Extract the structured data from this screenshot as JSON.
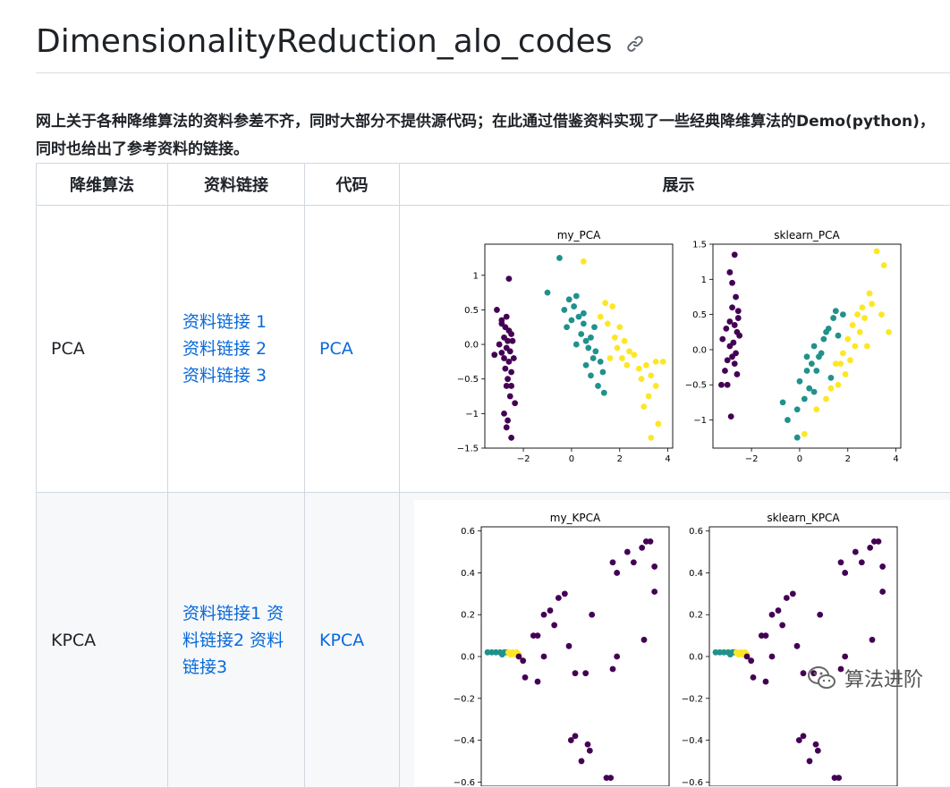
{
  "title": "DimensionalityReduction_alo_codes",
  "intro": "网上关于各种降维算法的资料参差不齐，同时大部分不提供源代码；在此通过借鉴资料实现了一些经典降维算法的Demo(python)，同时也给出了参考资料的链接。",
  "table": {
    "headers": [
      "降维算法",
      "资料链接",
      "代码",
      "展示"
    ],
    "rows": [
      {
        "algo": "PCA",
        "links": [
          "资料链接 1",
          "资料链接 2",
          "资料链接 3"
        ],
        "code": "PCA"
      },
      {
        "algo": "KPCA",
        "links": [
          "资料链接1",
          "资料链接2",
          "资料链接3"
        ],
        "code": "KPCA"
      }
    ]
  },
  "watermark": "算法进阶",
  "colors": {
    "purple": "#440154",
    "teal": "#21918c",
    "yellow": "#fde725",
    "link": "#0969da"
  },
  "chart_data": [
    {
      "type": "scatter",
      "title": "my_PCA",
      "xlim": [
        -3.6,
        4.2
      ],
      "ylim": [
        -1.5,
        1.45
      ],
      "xticks": [
        -2,
        0,
        2,
        4
      ],
      "yticks": [
        -1.5,
        -1.0,
        -0.5,
        0.0,
        0.5,
        1.0
      ],
      "series": [
        {
          "color": "#440154",
          "points": [
            [
              -2.6,
              0.95
            ],
            [
              -3.1,
              0.5
            ],
            [
              -2.9,
              0.3
            ],
            [
              -2.75,
              0.25
            ],
            [
              -2.6,
              0.2
            ],
            [
              -2.5,
              0.15
            ],
            [
              -2.8,
              0.1
            ],
            [
              -2.65,
              0.05
            ],
            [
              -3.0,
              0.0
            ],
            [
              -2.7,
              -0.05
            ],
            [
              -2.55,
              -0.1
            ],
            [
              -2.9,
              -0.12
            ],
            [
              -2.8,
              -0.2
            ],
            [
              -2.6,
              -0.25
            ],
            [
              -2.75,
              -0.35
            ],
            [
              -2.5,
              -0.4
            ],
            [
              -2.65,
              -0.5
            ],
            [
              -2.7,
              -0.6
            ],
            [
              -2.55,
              -0.75
            ],
            [
              -2.35,
              -0.85
            ],
            [
              -2.8,
              -1.0
            ],
            [
              -2.65,
              -1.1
            ],
            [
              -2.7,
              -1.2
            ],
            [
              -2.5,
              -1.35
            ],
            [
              -3.2,
              -0.15
            ],
            [
              -2.45,
              0.05
            ],
            [
              -2.9,
              0.35
            ],
            [
              -2.7,
              0.4
            ],
            [
              -2.4,
              -0.2
            ],
            [
              -2.5,
              -0.6
            ]
          ]
        },
        {
          "color": "#21918c",
          "points": [
            [
              -0.5,
              1.25
            ],
            [
              -1.0,
              0.75
            ],
            [
              -0.3,
              0.5
            ],
            [
              -0.1,
              0.65
            ],
            [
              0.1,
              0.55
            ],
            [
              0.2,
              0.7
            ],
            [
              0.3,
              0.4
            ],
            [
              0.5,
              0.3
            ],
            [
              0.0,
              0.35
            ],
            [
              -0.2,
              0.25
            ],
            [
              0.4,
              0.15
            ],
            [
              0.6,
              0.05
            ],
            [
              0.8,
              0.1
            ],
            [
              0.7,
              -0.05
            ],
            [
              1.0,
              -0.1
            ],
            [
              0.9,
              -0.2
            ],
            [
              0.6,
              -0.3
            ],
            [
              1.2,
              -0.25
            ],
            [
              1.3,
              -0.4
            ],
            [
              0.8,
              -0.45
            ],
            [
              1.1,
              -0.6
            ],
            [
              1.35,
              -0.7
            ],
            [
              0.2,
              0.0
            ],
            [
              0.5,
              0.45
            ],
            [
              0.95,
              0.25
            ]
          ]
        },
        {
          "color": "#fde725",
          "points": [
            [
              0.5,
              1.2
            ],
            [
              1.4,
              0.6
            ],
            [
              1.7,
              0.55
            ],
            [
              1.2,
              0.4
            ],
            [
              1.5,
              0.3
            ],
            [
              2.0,
              0.25
            ],
            [
              1.8,
              0.1
            ],
            [
              2.2,
              0.05
            ],
            [
              1.9,
              -0.05
            ],
            [
              2.4,
              -0.1
            ],
            [
              2.1,
              -0.2
            ],
            [
              2.6,
              -0.15
            ],
            [
              2.3,
              -0.3
            ],
            [
              2.8,
              -0.35
            ],
            [
              3.1,
              -0.3
            ],
            [
              2.9,
              -0.5
            ],
            [
              3.3,
              -0.45
            ],
            [
              3.5,
              -0.25
            ],
            [
              3.8,
              -0.25
            ],
            [
              3.2,
              -0.75
            ],
            [
              3.5,
              -0.6
            ],
            [
              3.0,
              -0.9
            ],
            [
              3.6,
              -1.15
            ],
            [
              3.3,
              -1.35
            ],
            [
              1.6,
              -0.2
            ]
          ]
        }
      ]
    },
    {
      "type": "scatter",
      "title": "sklearn_PCA",
      "xlim": [
        -3.6,
        4.2
      ],
      "ylim": [
        -1.4,
        1.5
      ],
      "xticks": [
        -2,
        0,
        2,
        4
      ],
      "yticks": [
        -1.0,
        -0.5,
        0.0,
        0.5,
        1.0,
        1.5
      ],
      "series": [
        {
          "color": "#440154",
          "points": [
            [
              -2.7,
              1.35
            ],
            [
              -2.9,
              1.1
            ],
            [
              -2.8,
              0.95
            ],
            [
              -2.65,
              0.75
            ],
            [
              -2.8,
              0.6
            ],
            [
              -2.55,
              0.55
            ],
            [
              -2.9,
              0.4
            ],
            [
              -2.7,
              0.35
            ],
            [
              -2.6,
              0.25
            ],
            [
              -3.2,
              0.15
            ],
            [
              -2.75,
              0.1
            ],
            [
              -2.9,
              0.05
            ],
            [
              -2.65,
              -0.05
            ],
            [
              -2.8,
              -0.1
            ],
            [
              -3.0,
              -0.15
            ],
            [
              -2.7,
              -0.2
            ],
            [
              -3.1,
              -0.3
            ],
            [
              -2.6,
              -0.35
            ],
            [
              -3.25,
              -0.5
            ],
            [
              -3.0,
              -0.5
            ],
            [
              -2.85,
              -0.95
            ],
            [
              -2.55,
              0.45
            ],
            [
              -2.5,
              0.2
            ],
            [
              -3.05,
              0.3
            ]
          ]
        },
        {
          "color": "#21918c",
          "points": [
            [
              -0.7,
              -0.75
            ],
            [
              -0.1,
              -0.85
            ],
            [
              0.0,
              -0.45
            ],
            [
              0.3,
              -0.3
            ],
            [
              0.5,
              -0.2
            ],
            [
              0.8,
              -0.1
            ],
            [
              0.6,
              0.05
            ],
            [
              1.0,
              0.15
            ],
            [
              1.2,
              0.3
            ],
            [
              1.4,
              0.45
            ],
            [
              1.5,
              0.55
            ],
            [
              1.1,
              0.25
            ],
            [
              0.9,
              -0.05
            ],
            [
              0.4,
              -0.55
            ],
            [
              0.2,
              -0.7
            ],
            [
              0.6,
              -0.6
            ],
            [
              1.3,
              -0.4
            ],
            [
              -0.5,
              -1.0
            ],
            [
              -0.1,
              -1.25
            ],
            [
              0.7,
              -0.3
            ],
            [
              1.6,
              0.2
            ],
            [
              0.3,
              -0.1
            ],
            [
              1.8,
              0.5
            ]
          ]
        },
        {
          "color": "#fde725",
          "points": [
            [
              3.2,
              1.4
            ],
            [
              3.5,
              1.2
            ],
            [
              2.9,
              0.8
            ],
            [
              2.6,
              0.6
            ],
            [
              3.0,
              0.65
            ],
            [
              2.4,
              0.5
            ],
            [
              2.7,
              0.45
            ],
            [
              2.2,
              0.35
            ],
            [
              2.5,
              0.25
            ],
            [
              2.0,
              0.15
            ],
            [
              2.3,
              0.05
            ],
            [
              1.8,
              -0.05
            ],
            [
              2.1,
              -0.15
            ],
            [
              1.5,
              -0.2
            ],
            [
              1.9,
              -0.35
            ],
            [
              1.6,
              -0.5
            ],
            [
              1.3,
              -0.55
            ],
            [
              1.1,
              -0.7
            ],
            [
              0.7,
              -0.85
            ],
            [
              0.2,
              -1.2
            ],
            [
              3.7,
              0.25
            ],
            [
              3.4,
              0.5
            ],
            [
              2.8,
              0.05
            ],
            [
              1.7,
              -0.2
            ]
          ]
        }
      ]
    },
    {
      "type": "scatter",
      "title": "my_KPCA",
      "xlim": [
        -0.15,
        0.75
      ],
      "ylim": [
        -0.62,
        0.62
      ],
      "yticks": [
        -0.6,
        -0.4,
        -0.2,
        0.0,
        0.2,
        0.4,
        0.6
      ],
      "series": [
        {
          "color": "#21918c",
          "points": [
            [
              -0.12,
              0.02
            ],
            [
              -0.1,
              0.02
            ],
            [
              -0.08,
              0.02
            ],
            [
              -0.06,
              0.02
            ],
            [
              -0.05,
              0.01
            ],
            [
              -0.04,
              0.02
            ],
            [
              -0.03,
              0.02
            ]
          ]
        },
        {
          "color": "#fde725",
          "points": [
            [
              -0.02,
              0.02
            ],
            [
              -0.01,
              0.01
            ],
            [
              0.0,
              0.02
            ],
            [
              0.01,
              0.01
            ],
            [
              0.02,
              0.02
            ],
            [
              0.03,
              0.01
            ]
          ]
        },
        {
          "color": "#440154",
          "points": [
            [
              0.03,
              0.0
            ],
            [
              0.05,
              -0.02
            ],
            [
              0.06,
              -0.1
            ],
            [
              0.12,
              -0.12
            ],
            [
              0.1,
              0.1
            ],
            [
              0.12,
              0.1
            ],
            [
              0.15,
              0.2
            ],
            [
              0.18,
              0.22
            ],
            [
              0.2,
              0.15
            ],
            [
              0.22,
              0.28
            ],
            [
              0.25,
              0.3
            ],
            [
              0.27,
              0.05
            ],
            [
              0.3,
              -0.08
            ],
            [
              0.35,
              -0.08
            ],
            [
              0.28,
              -0.4
            ],
            [
              0.3,
              -0.38
            ],
            [
              0.36,
              -0.42
            ],
            [
              0.37,
              -0.45
            ],
            [
              0.33,
              -0.5
            ],
            [
              0.38,
              0.2
            ],
            [
              0.45,
              -0.58
            ],
            [
              0.47,
              -0.58
            ],
            [
              0.48,
              0.45
            ],
            [
              0.5,
              0.4
            ],
            [
              0.55,
              0.5
            ],
            [
              0.58,
              0.45
            ],
            [
              0.62,
              0.52
            ],
            [
              0.64,
              0.55
            ],
            [
              0.66,
              0.55
            ],
            [
              0.68,
              0.43
            ],
            [
              0.68,
              0.31
            ],
            [
              0.63,
              0.08
            ],
            [
              0.5,
              0.0
            ],
            [
              0.48,
              -0.06
            ],
            [
              0.15,
              0.0
            ]
          ]
        }
      ]
    },
    {
      "type": "scatter",
      "title": "sklearn_KPCA",
      "xlim": [
        -0.15,
        0.75
      ],
      "ylim": [
        -0.62,
        0.62
      ],
      "yticks": [
        -0.6,
        -0.4,
        -0.2,
        0.0,
        0.2,
        0.4,
        0.6
      ],
      "series": [
        {
          "color": "#21918c",
          "points": [
            [
              -0.12,
              0.02
            ],
            [
              -0.1,
              0.02
            ],
            [
              -0.08,
              0.02
            ],
            [
              -0.06,
              0.02
            ],
            [
              -0.05,
              0.01
            ],
            [
              -0.04,
              0.02
            ],
            [
              -0.03,
              0.02
            ]
          ]
        },
        {
          "color": "#fde725",
          "points": [
            [
              -0.02,
              0.02
            ],
            [
              -0.01,
              0.01
            ],
            [
              0.0,
              0.02
            ],
            [
              0.01,
              0.01
            ],
            [
              0.02,
              0.02
            ],
            [
              0.03,
              0.01
            ]
          ]
        },
        {
          "color": "#440154",
          "points": [
            [
              0.03,
              0.0
            ],
            [
              0.05,
              -0.02
            ],
            [
              0.06,
              -0.1
            ],
            [
              0.12,
              -0.12
            ],
            [
              0.1,
              0.1
            ],
            [
              0.12,
              0.1
            ],
            [
              0.15,
              0.2
            ],
            [
              0.18,
              0.22
            ],
            [
              0.2,
              0.15
            ],
            [
              0.22,
              0.28
            ],
            [
              0.25,
              0.3
            ],
            [
              0.27,
              0.05
            ],
            [
              0.3,
              -0.08
            ],
            [
              0.35,
              -0.08
            ],
            [
              0.28,
              -0.4
            ],
            [
              0.3,
              -0.38
            ],
            [
              0.36,
              -0.42
            ],
            [
              0.37,
              -0.45
            ],
            [
              0.33,
              -0.5
            ],
            [
              0.38,
              0.2
            ],
            [
              0.45,
              -0.58
            ],
            [
              0.47,
              -0.58
            ],
            [
              0.48,
              0.45
            ],
            [
              0.5,
              0.4
            ],
            [
              0.55,
              0.5
            ],
            [
              0.58,
              0.45
            ],
            [
              0.62,
              0.52
            ],
            [
              0.64,
              0.55
            ],
            [
              0.66,
              0.55
            ],
            [
              0.68,
              0.43
            ],
            [
              0.68,
              0.31
            ],
            [
              0.63,
              0.08
            ],
            [
              0.5,
              0.0
            ],
            [
              0.48,
              -0.06
            ],
            [
              0.15,
              0.0
            ]
          ]
        }
      ]
    }
  ]
}
